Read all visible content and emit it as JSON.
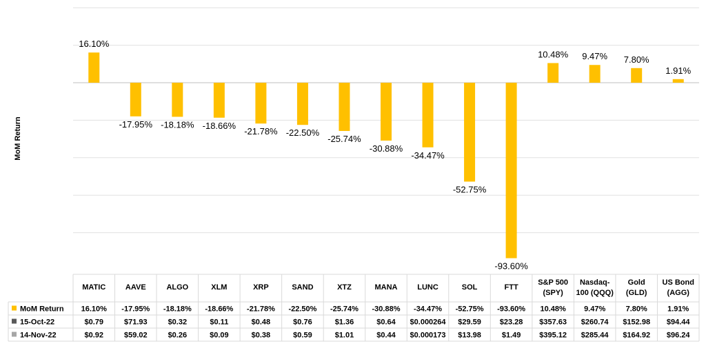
{
  "chart_data": {
    "type": "bar",
    "ylabel": "MoM Return",
    "categories": [
      "MATIC",
      "AAVE",
      "ALGO",
      "XLM",
      "XRP",
      "SAND",
      "XTZ",
      "MANA",
      "LUNC",
      "SOL",
      "FTT",
      "S&P 500\n(SPY)",
      "Nasdaq-\n100 (QQQ)",
      "Gold\n(GLD)",
      "US Bond\n(AGG)"
    ],
    "series": [
      {
        "name": "MoM Return",
        "values": [
          16.1,
          -17.95,
          -18.18,
          -18.66,
          -21.78,
          -22.5,
          -25.74,
          -30.88,
          -34.47,
          -52.75,
          -93.6,
          10.48,
          9.47,
          7.8,
          1.91
        ],
        "color": "#FFC000"
      }
    ],
    "data_labels": [
      "16.10%",
      "-17.95%",
      "-18.18%",
      "-18.66%",
      "-21.78%",
      "-22.50%",
      "-25.74%",
      "-30.88%",
      "-34.47%",
      "-52.75%",
      "-93.60%",
      "10.48%",
      "9.47%",
      "7.80%",
      "1.91%"
    ],
    "ylim": [
      -100,
      20
    ],
    "grid": true,
    "table": {
      "rows": [
        {
          "label": "MoM Return",
          "color": "#FFC000",
          "values": [
            "16.10%",
            "-17.95%",
            "-18.18%",
            "-18.66%",
            "-21.78%",
            "-22.50%",
            "-25.74%",
            "-30.88%",
            "-34.47%",
            "-52.75%",
            "-93.60%",
            "10.48%",
            "9.47%",
            "7.80%",
            "1.91%"
          ]
        },
        {
          "label": "15-Oct-22",
          "color": "#595959",
          "values": [
            "$0.79",
            "$71.93",
            "$0.32",
            "$0.11",
            "$0.48",
            "$0.76",
            "$1.36",
            "$0.64",
            "$0.000264",
            "$29.59",
            "$23.28",
            "$357.63",
            "$260.74",
            "$152.98",
            "$94.44"
          ]
        },
        {
          "label": "14-Nov-22",
          "color": "#A6A6A6",
          "values": [
            "$0.92",
            "$59.02",
            "$0.26",
            "$0.09",
            "$0.38",
            "$0.59",
            "$1.01",
            "$0.44",
            "$0.000173",
            "$13.98",
            "$1.49",
            "$395.12",
            "$285.44",
            "$164.92",
            "$96.24"
          ]
        }
      ]
    }
  }
}
